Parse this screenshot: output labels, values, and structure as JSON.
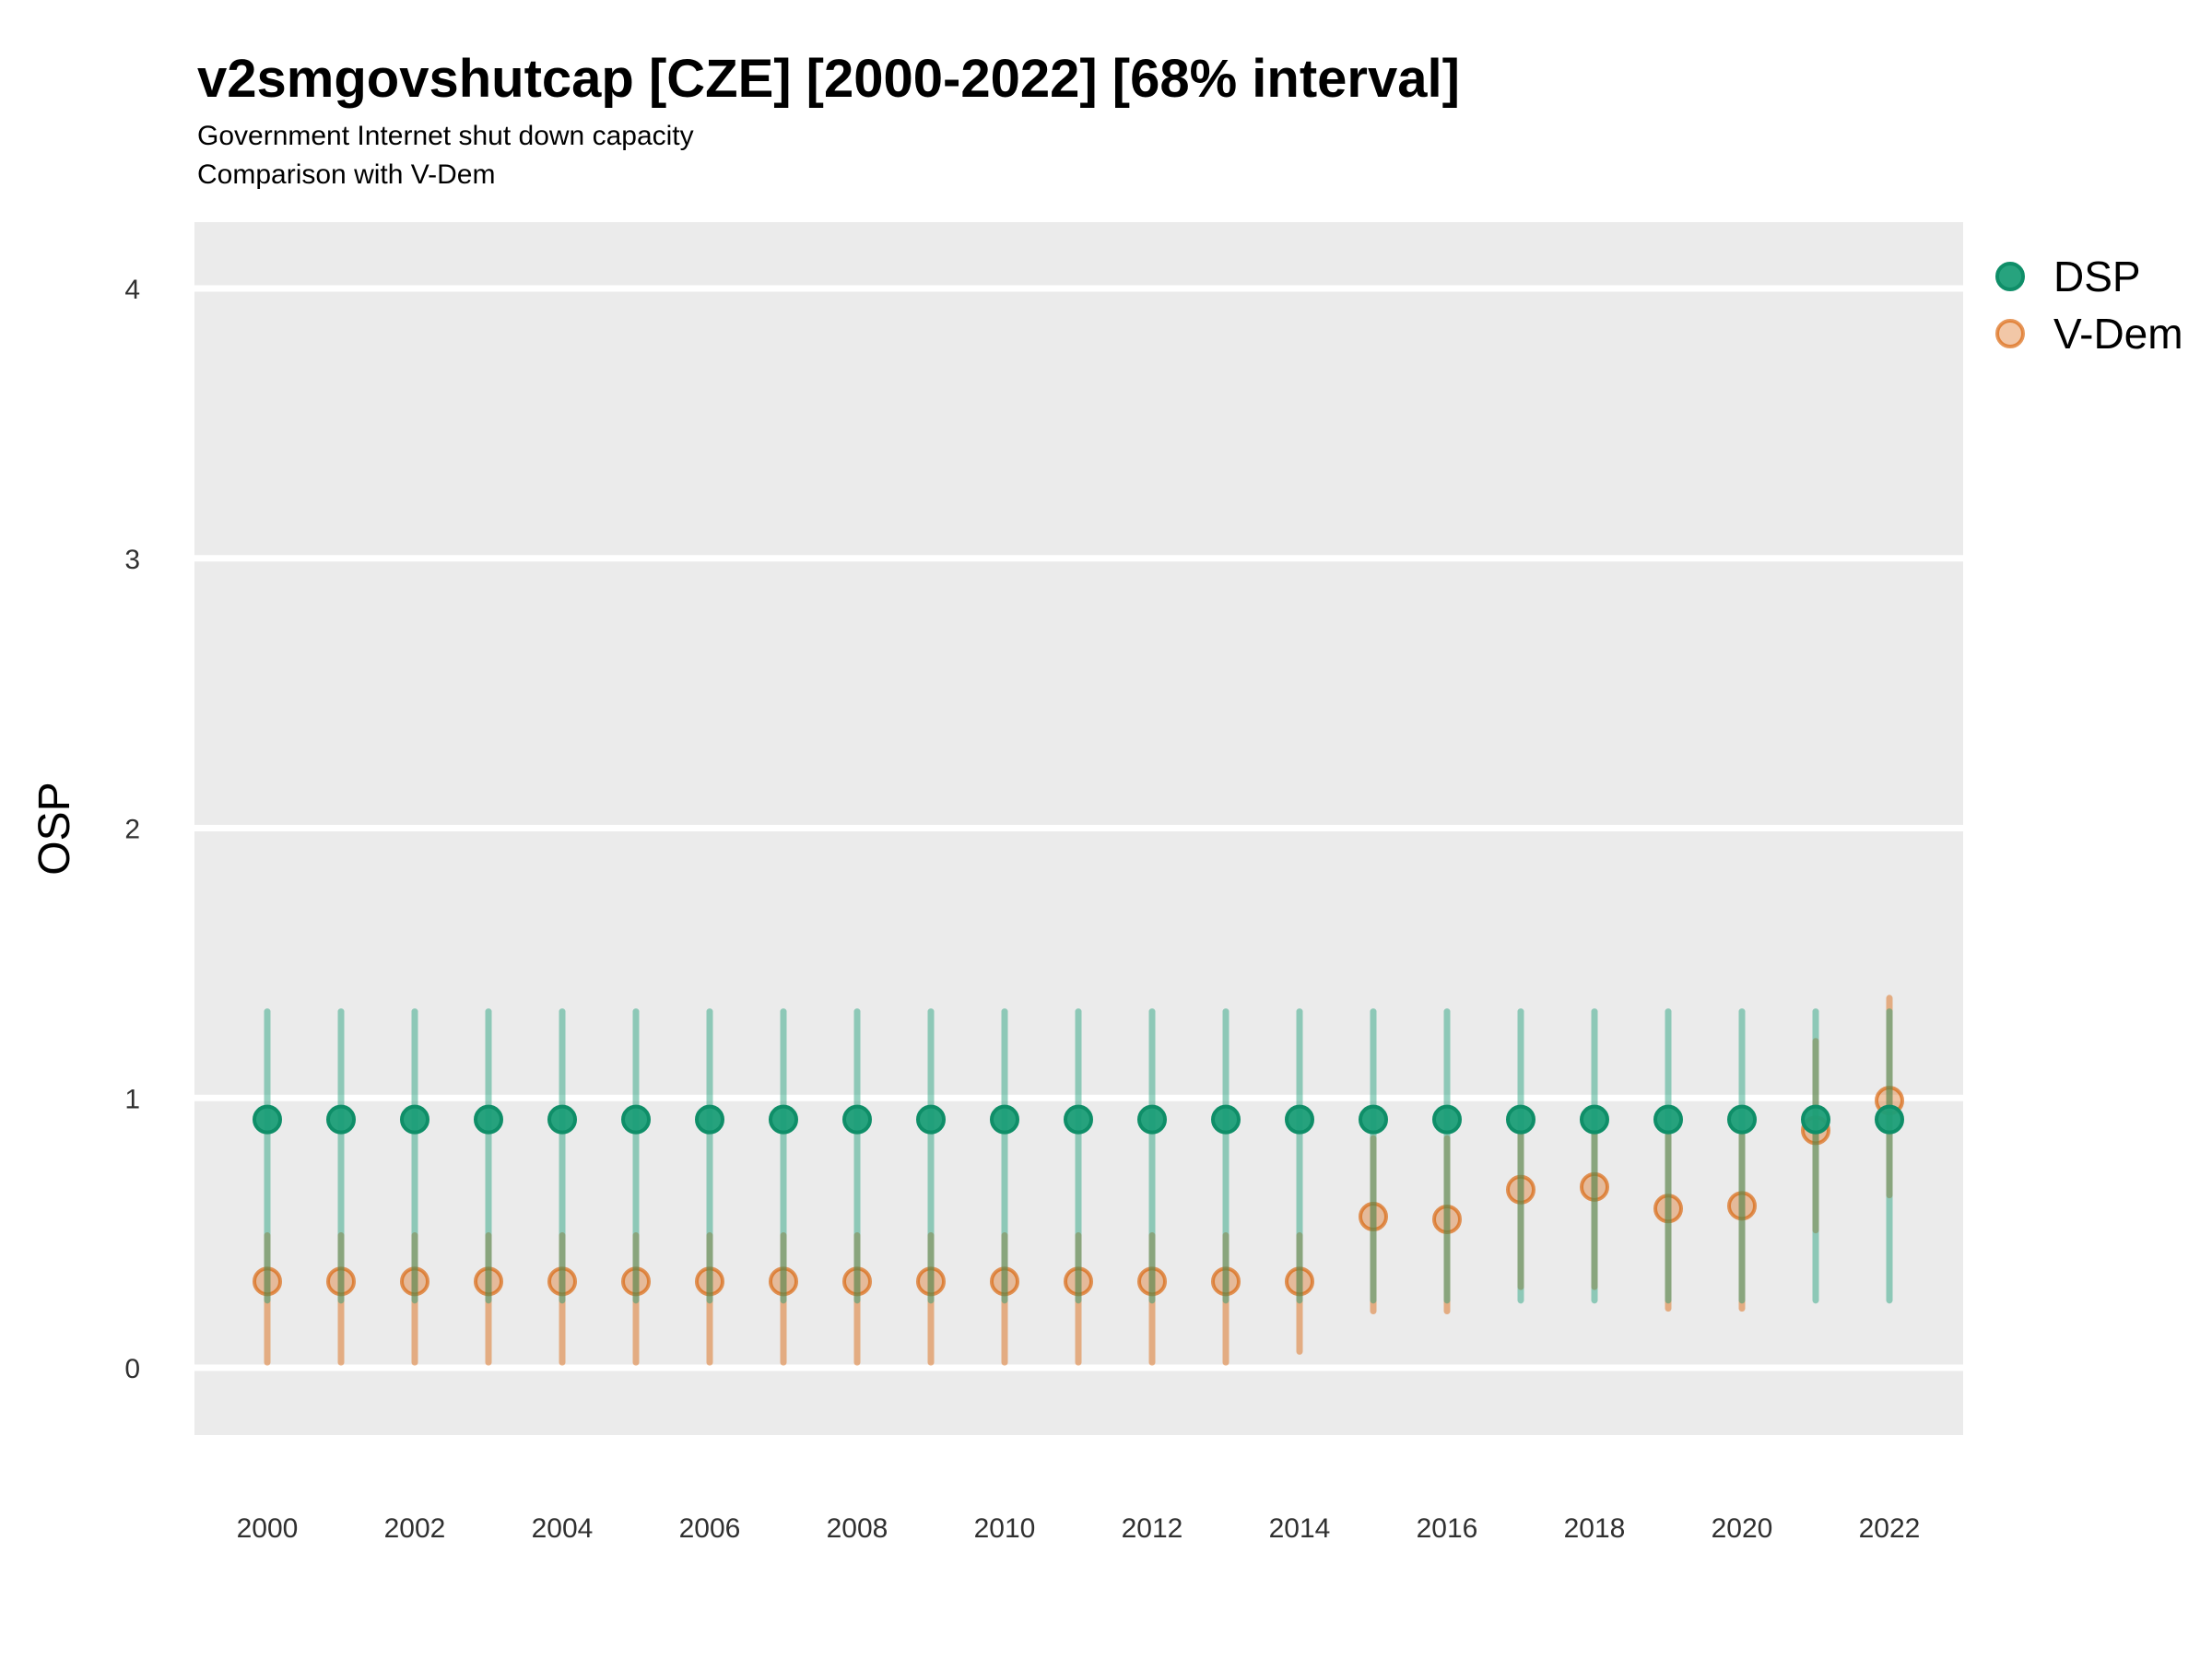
{
  "title": "v2smgovshutcap [CZE] [2000-2022] [68% interval]",
  "subtitle1": "Government Internet shut down capacity",
  "subtitle2": "Comparison with V-Dem",
  "ylabel": "OSP",
  "colors": {
    "panel_background": "#EBEBEB",
    "gridline": "#FFFFFF",
    "axis_text": "#303030",
    "title_text": "#000000",
    "dsp": "#1B9E77",
    "vdem": "#D95F02"
  },
  "chart_data": {
    "type": "scatter",
    "subtype": "pointrange-errorbar",
    "title": "v2smgovshutcap [CZE] [2000-2022] [68% interval]",
    "subtitle": "Government Internet shut down capacity / Comparison with V-Dem",
    "interval": "68%",
    "xlabel": "",
    "ylabel": "OSP",
    "ylim": [
      -0.25,
      4.25
    ],
    "yticks": [
      0,
      1,
      2,
      3,
      4
    ],
    "xticks": [
      2000,
      2002,
      2004,
      2006,
      2008,
      2010,
      2012,
      2014,
      2016,
      2018,
      2020,
      2022
    ],
    "grid": "horizontal-major-only",
    "legend_position": "top-right-outside",
    "legend": [
      {
        "name": "DSP",
        "color": "#1B9E77"
      },
      {
        "name": "V-Dem",
        "color": "#D95F02"
      }
    ],
    "series": [
      {
        "name": "DSP",
        "color": "#1B9E77",
        "line_rgba": "rgba(27,158,119,0.45)",
        "dot_fill": "rgba(27,158,119,0.95)",
        "dot_stroke": "#0F8E68",
        "points": [
          {
            "year": 2000,
            "value": 0.92,
            "lo": 0.25,
            "hi": 1.32
          },
          {
            "year": 2001,
            "value": 0.92,
            "lo": 0.25,
            "hi": 1.32
          },
          {
            "year": 2002,
            "value": 0.92,
            "lo": 0.25,
            "hi": 1.32
          },
          {
            "year": 2003,
            "value": 0.92,
            "lo": 0.25,
            "hi": 1.32
          },
          {
            "year": 2004,
            "value": 0.92,
            "lo": 0.25,
            "hi": 1.32
          },
          {
            "year": 2005,
            "value": 0.92,
            "lo": 0.25,
            "hi": 1.32
          },
          {
            "year": 2006,
            "value": 0.92,
            "lo": 0.25,
            "hi": 1.32
          },
          {
            "year": 2007,
            "value": 0.92,
            "lo": 0.25,
            "hi": 1.32
          },
          {
            "year": 2008,
            "value": 0.92,
            "lo": 0.25,
            "hi": 1.32
          },
          {
            "year": 2009,
            "value": 0.92,
            "lo": 0.25,
            "hi": 1.32
          },
          {
            "year": 2010,
            "value": 0.92,
            "lo": 0.25,
            "hi": 1.32
          },
          {
            "year": 2011,
            "value": 0.92,
            "lo": 0.25,
            "hi": 1.32
          },
          {
            "year": 2012,
            "value": 0.92,
            "lo": 0.25,
            "hi": 1.32
          },
          {
            "year": 2013,
            "value": 0.92,
            "lo": 0.25,
            "hi": 1.32
          },
          {
            "year": 2014,
            "value": 0.92,
            "lo": 0.25,
            "hi": 1.32
          },
          {
            "year": 2015,
            "value": 0.92,
            "lo": 0.25,
            "hi": 1.32
          },
          {
            "year": 2016,
            "value": 0.92,
            "lo": 0.25,
            "hi": 1.32
          },
          {
            "year": 2017,
            "value": 0.92,
            "lo": 0.25,
            "hi": 1.32
          },
          {
            "year": 2018,
            "value": 0.92,
            "lo": 0.25,
            "hi": 1.32
          },
          {
            "year": 2019,
            "value": 0.92,
            "lo": 0.25,
            "hi": 1.32
          },
          {
            "year": 2020,
            "value": 0.92,
            "lo": 0.25,
            "hi": 1.32
          },
          {
            "year": 2021,
            "value": 0.92,
            "lo": 0.25,
            "hi": 1.32
          },
          {
            "year": 2022,
            "value": 0.92,
            "lo": 0.25,
            "hi": 1.32
          }
        ]
      },
      {
        "name": "V-Dem",
        "color": "#D95F02",
        "line_rgba": "rgba(217,95,2,0.45)",
        "dot_fill": "rgba(217,95,2,0.35)",
        "dot_stroke": "rgba(217,95,2,0.65)",
        "points": [
          {
            "year": 2000,
            "value": 0.32,
            "lo": 0.02,
            "hi": 0.49
          },
          {
            "year": 2001,
            "value": 0.32,
            "lo": 0.02,
            "hi": 0.49
          },
          {
            "year": 2002,
            "value": 0.32,
            "lo": 0.02,
            "hi": 0.49
          },
          {
            "year": 2003,
            "value": 0.32,
            "lo": 0.02,
            "hi": 0.49
          },
          {
            "year": 2004,
            "value": 0.32,
            "lo": 0.02,
            "hi": 0.49
          },
          {
            "year": 2005,
            "value": 0.32,
            "lo": 0.02,
            "hi": 0.49
          },
          {
            "year": 2006,
            "value": 0.32,
            "lo": 0.02,
            "hi": 0.49
          },
          {
            "year": 2007,
            "value": 0.32,
            "lo": 0.02,
            "hi": 0.49
          },
          {
            "year": 2008,
            "value": 0.32,
            "lo": 0.02,
            "hi": 0.49
          },
          {
            "year": 2009,
            "value": 0.32,
            "lo": 0.02,
            "hi": 0.49
          },
          {
            "year": 2010,
            "value": 0.32,
            "lo": 0.02,
            "hi": 0.49
          },
          {
            "year": 2011,
            "value": 0.32,
            "lo": 0.02,
            "hi": 0.49
          },
          {
            "year": 2012,
            "value": 0.32,
            "lo": 0.02,
            "hi": 0.49
          },
          {
            "year": 2013,
            "value": 0.32,
            "lo": 0.02,
            "hi": 0.49
          },
          {
            "year": 2014,
            "value": 0.32,
            "lo": 0.06,
            "hi": 0.49
          },
          {
            "year": 2015,
            "value": 0.56,
            "lo": 0.21,
            "hi": 0.85
          },
          {
            "year": 2016,
            "value": 0.55,
            "lo": 0.21,
            "hi": 0.85
          },
          {
            "year": 2017,
            "value": 0.66,
            "lo": 0.3,
            "hi": 0.87
          },
          {
            "year": 2018,
            "value": 0.67,
            "lo": 0.3,
            "hi": 0.87
          },
          {
            "year": 2019,
            "value": 0.59,
            "lo": 0.22,
            "hi": 0.86
          },
          {
            "year": 2020,
            "value": 0.6,
            "lo": 0.22,
            "hi": 0.86
          },
          {
            "year": 2021,
            "value": 0.88,
            "lo": 0.51,
            "hi": 1.21
          },
          {
            "year": 2022,
            "value": 0.99,
            "lo": 0.64,
            "hi": 1.37
          }
        ]
      }
    ]
  }
}
